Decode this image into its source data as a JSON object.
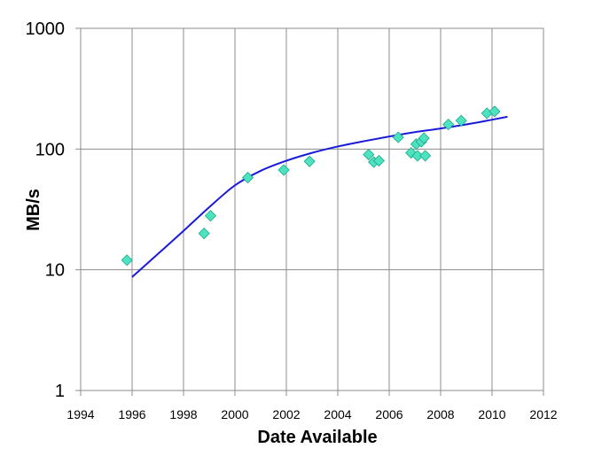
{
  "chart_data": {
    "type": "scatter",
    "title": "",
    "xlabel": "Date Available",
    "ylabel": "MB/s",
    "xlim": [
      1994,
      2012
    ],
    "ylim": [
      1,
      1000
    ],
    "yscale": "log",
    "grid": true,
    "legend": "none",
    "x_ticks": [
      "1994",
      "1996",
      "1998",
      "2000",
      "2002",
      "2004",
      "2006",
      "2008",
      "2010",
      "2012"
    ],
    "y_ticks": [
      "1",
      "10",
      "100",
      "1000"
    ],
    "colors": {
      "points_fill": "#4de3c0",
      "points_stroke": "#1aa88a",
      "trend_line": "#1a1adb",
      "grid": "#8c8c8c"
    },
    "series": [
      {
        "type": "scatter",
        "points": [
          [
            1995.8,
            12
          ],
          [
            1998.8,
            20
          ],
          [
            1999.05,
            28
          ],
          [
            2000.5,
            58
          ],
          [
            2001.9,
            67
          ],
          [
            2002.9,
            79
          ],
          [
            2005.2,
            90
          ],
          [
            2005.4,
            78
          ],
          [
            2005.6,
            80
          ],
          [
            2006.35,
            125
          ],
          [
            2006.85,
            93
          ],
          [
            2007.05,
            110
          ],
          [
            2007.1,
            88
          ],
          [
            2007.25,
            115
          ],
          [
            2007.35,
            123
          ],
          [
            2007.4,
            88
          ],
          [
            2008.3,
            160
          ],
          [
            2008.8,
            172
          ],
          [
            2009.8,
            198
          ],
          [
            2010.1,
            205
          ]
        ]
      },
      {
        "type": "line",
        "points": [
          [
            1996.0,
            8.7
          ],
          [
            1997.0,
            13.5
          ],
          [
            1998.0,
            21.0
          ],
          [
            1999.0,
            33.0
          ],
          [
            2000.0,
            50.0
          ],
          [
            2001.0,
            66.0
          ],
          [
            2002.0,
            80.0
          ],
          [
            2003.0,
            93.0
          ],
          [
            2004.0,
            105.0
          ],
          [
            2005.0,
            116.0
          ],
          [
            2006.0,
            127.0
          ],
          [
            2007.0,
            138.0
          ],
          [
            2008.0,
            148.0
          ],
          [
            2009.0,
            160.0
          ],
          [
            2010.0,
            175.0
          ],
          [
            2010.6,
            185.0
          ]
        ]
      }
    ]
  }
}
